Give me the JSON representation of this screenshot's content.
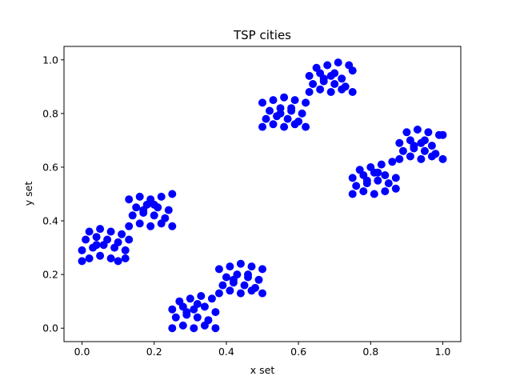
{
  "chart_data": {
    "type": "scatter",
    "title": "TSP cities",
    "xlabel": "x set",
    "ylabel": "y set",
    "xlim": [
      -0.05,
      1.05
    ],
    "ylim": [
      -0.05,
      1.05
    ],
    "x_ticks": [
      "0.0",
      "0.2",
      "0.4",
      "0.6",
      "0.8",
      "1.0"
    ],
    "y_ticks": [
      "0.0",
      "0.2",
      "0.4",
      "0.6",
      "0.8",
      "1.0"
    ],
    "grid": false,
    "marker_color": "#0000ff",
    "series": [
      {
        "x": [
          0.0,
          0.02,
          0.05,
          0.08,
          0.1,
          0.12,
          0.0,
          0.03,
          0.06,
          0.09,
          0.12,
          0.01,
          0.04,
          0.07,
          0.1,
          0.13,
          0.02,
          0.05,
          0.08,
          0.11,
          0.04,
          0.13,
          0.16,
          0.19,
          0.22,
          0.25,
          0.14,
          0.17,
          0.2,
          0.23,
          0.15,
          0.18,
          0.21,
          0.24,
          0.13,
          0.16,
          0.19,
          0.22,
          0.25,
          0.17,
          0.2,
          0.25,
          0.28,
          0.31,
          0.34,
          0.37,
          0.26,
          0.29,
          0.32,
          0.35,
          0.25,
          0.28,
          0.31,
          0.34,
          0.37,
          0.27,
          0.3,
          0.33,
          0.36,
          0.29,
          0.32,
          0.38,
          0.41,
          0.44,
          0.47,
          0.5,
          0.39,
          0.42,
          0.45,
          0.48,
          0.4,
          0.43,
          0.46,
          0.49,
          0.38,
          0.41,
          0.44,
          0.47,
          0.5,
          0.42,
          0.46,
          0.5,
          0.53,
          0.56,
          0.59,
          0.62,
          0.51,
          0.54,
          0.57,
          0.6,
          0.52,
          0.55,
          0.58,
          0.61,
          0.5,
          0.53,
          0.56,
          0.59,
          0.62,
          0.55,
          0.58,
          0.63,
          0.66,
          0.69,
          0.72,
          0.75,
          0.64,
          0.67,
          0.7,
          0.73,
          0.63,
          0.66,
          0.69,
          0.72,
          0.75,
          0.65,
          0.68,
          0.71,
          0.74,
          0.67,
          0.7,
          0.75,
          0.78,
          0.81,
          0.84,
          0.87,
          0.76,
          0.79,
          0.82,
          0.85,
          0.75,
          0.78,
          0.81,
          0.84,
          0.87,
          0.77,
          0.8,
          0.83,
          0.86,
          0.79,
          0.82,
          0.88,
          0.91,
          0.94,
          0.97,
          1.0,
          0.89,
          0.92,
          0.95,
          0.98,
          0.88,
          0.91,
          0.94,
          0.97,
          1.0,
          0.9,
          0.93,
          0.96,
          0.99,
          0.92,
          0.95
        ],
        "y": [
          0.25,
          0.26,
          0.27,
          0.26,
          0.25,
          0.26,
          0.29,
          0.3,
          0.31,
          0.3,
          0.29,
          0.33,
          0.34,
          0.33,
          0.32,
          0.33,
          0.36,
          0.37,
          0.36,
          0.35,
          0.31,
          0.38,
          0.39,
          0.38,
          0.39,
          0.38,
          0.42,
          0.43,
          0.42,
          0.41,
          0.45,
          0.46,
          0.45,
          0.44,
          0.48,
          0.49,
          0.48,
          0.49,
          0.5,
          0.44,
          0.46,
          0.0,
          0.01,
          0.0,
          0.01,
          0.0,
          0.04,
          0.05,
          0.04,
          0.03,
          0.07,
          0.08,
          0.07,
          0.08,
          0.06,
          0.1,
          0.11,
          0.12,
          0.11,
          0.06,
          0.09,
          0.13,
          0.14,
          0.13,
          0.14,
          0.13,
          0.16,
          0.17,
          0.16,
          0.15,
          0.19,
          0.2,
          0.19,
          0.18,
          0.22,
          0.23,
          0.24,
          0.23,
          0.22,
          0.18,
          0.2,
          0.75,
          0.76,
          0.75,
          0.76,
          0.75,
          0.78,
          0.79,
          0.78,
          0.77,
          0.81,
          0.82,
          0.81,
          0.8,
          0.84,
          0.85,
          0.86,
          0.85,
          0.84,
          0.8,
          0.82,
          0.88,
          0.89,
          0.88,
          0.89,
          0.88,
          0.91,
          0.92,
          0.91,
          0.9,
          0.94,
          0.95,
          0.94,
          0.93,
          0.96,
          0.97,
          0.98,
          0.99,
          0.98,
          0.93,
          0.95,
          0.5,
          0.51,
          0.5,
          0.51,
          0.52,
          0.53,
          0.54,
          0.55,
          0.54,
          0.56,
          0.57,
          0.58,
          0.57,
          0.56,
          0.59,
          0.6,
          0.61,
          0.62,
          0.55,
          0.58,
          0.63,
          0.64,
          0.63,
          0.64,
          0.63,
          0.66,
          0.67,
          0.66,
          0.65,
          0.69,
          0.7,
          0.69,
          0.68,
          0.72,
          0.73,
          0.74,
          0.73,
          0.72,
          0.68,
          0.7
        ]
      }
    ]
  }
}
